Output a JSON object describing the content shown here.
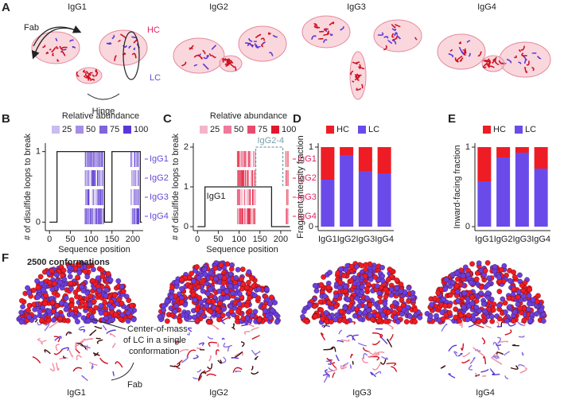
{
  "panel_labels": [
    "A",
    "B",
    "C",
    "D",
    "E",
    "F"
  ],
  "panel_a": {
    "titles": [
      "IgG1",
      "IgG2",
      "IgG3",
      "IgG4"
    ],
    "fab": "Fab",
    "hc": "HC",
    "lc": "LC",
    "hinge": "Hinge"
  },
  "panel_f": {
    "titles": [
      "IgG1",
      "IgG2",
      "IgG3",
      "IgG4"
    ],
    "note": "2500 conformations",
    "callout": [
      "Center-of-mass",
      "of LC in a single",
      "conformation"
    ],
    "fab": "Fab"
  },
  "chart_data": [
    {
      "type": "step-line",
      "x_label": "Sequence position",
      "y_label": "# of disulfide loops to break",
      "xlim": [
        -10,
        225
      ],
      "ylim": [
        -0.12,
        1.12
      ],
      "xticks": [
        0,
        50,
        100,
        150,
        200
      ],
      "yticks": [
        0,
        1
      ],
      "categories": [
        "IgG1",
        "IgG2",
        "IgG3",
        "IgG4"
      ],
      "category_color": "#6a4bd6",
      "legend": {
        "title": "Relative abundance",
        "levels": [
          25,
          50,
          75,
          100
        ],
        "colors": [
          "#c9bdf0",
          "#a48fe4",
          "#8064d8",
          "#5a38d6"
        ]
      },
      "strips": [
        [
          85,
          130
        ],
        [
          195,
          215
        ]
      ],
      "series": [
        {
          "color": "#222222",
          "x": [
            0,
            18,
            18,
            132,
            132,
            150,
            150,
            218,
            218,
            222
          ],
          "values": [
            0,
            0,
            1,
            1,
            0,
            0,
            1,
            1,
            0,
            0
          ]
        }
      ]
    },
    {
      "type": "step-line",
      "x_label": "Sequence position",
      "y_label": "# of disulfide loops to break",
      "xlim": [
        -10,
        225
      ],
      "ylim": [
        -0.1,
        2.1
      ],
      "xticks": [
        0,
        50,
        100,
        150,
        200
      ],
      "yticks": [
        0,
        1,
        2
      ],
      "categories": [
        "IgG1",
        "IgG2",
        "IgG3",
        "IgG4"
      ],
      "category_color": "#e0245e",
      "legend": {
        "title": "Relative abundance",
        "levels": [
          25,
          50,
          75,
          100
        ],
        "colors": [
          "#f5b5c8",
          "#f07a9c",
          "#ea4a6e",
          "#e0182e"
        ]
      },
      "strips": [
        [
          95,
          140
        ],
        [
          212,
          218
        ]
      ],
      "series": [
        {
          "name": "IgG1",
          "color": "#222222",
          "x": [
            0,
            18,
            18,
            178,
            178,
            222
          ],
          "values": [
            0,
            0,
            1,
            1,
            0,
            0
          ]
        },
        {
          "name": "IgG2-4",
          "color": "#7aa0a8",
          "dashed": true,
          "x": [
            140,
            140,
            205,
            205
          ],
          "values": [
            1,
            2,
            2,
            1
          ]
        }
      ]
    },
    {
      "type": "stacked-bar",
      "y_label": "Fragment intensity fraction",
      "ylim": [
        -0.05,
        1.05
      ],
      "yticks": [
        0,
        1
      ],
      "categories": [
        "IgG1",
        "IgG2",
        "IgG3",
        "IgG4"
      ],
      "series": [
        {
          "name": "LC",
          "color": "#6a4bea",
          "values": [
            0.59,
            0.9,
            0.7,
            0.67
          ]
        },
        {
          "name": "HC",
          "color": "#ee1c24",
          "values": [
            0.41,
            0.1,
            0.3,
            0.33
          ]
        }
      ]
    },
    {
      "type": "stacked-bar",
      "y_label": "Inward-facing fraction",
      "ylim": [
        -0.05,
        1.05
      ],
      "yticks": [
        0,
        1
      ],
      "categories": [
        "IgG1",
        "IgG2",
        "IgG3",
        "IgG4"
      ],
      "series": [
        {
          "name": "LC",
          "color": "#6a4bea",
          "values": [
            0.57,
            0.87,
            0.93,
            0.73
          ]
        },
        {
          "name": "HC",
          "color": "#ee1c24",
          "values": [
            0.43,
            0.13,
            0.07,
            0.27
          ]
        }
      ]
    }
  ]
}
